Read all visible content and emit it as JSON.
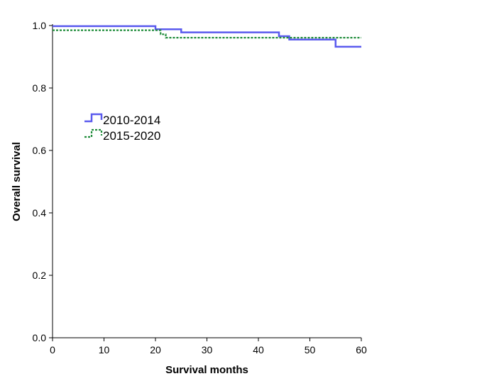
{
  "chart_data": {
    "type": "line",
    "style": "step",
    "xlabel": "Survival months",
    "ylabel": "Overall survival",
    "xlim": [
      0,
      60
    ],
    "ylim": [
      0.0,
      1.0
    ],
    "x_ticks": [
      0,
      10,
      20,
      30,
      40,
      50,
      60
    ],
    "x_tick_labels": [
      "0",
      "10",
      "20",
      "30",
      "40",
      "50",
      "60"
    ],
    "y_ticks": [
      0.0,
      0.2,
      0.4,
      0.6,
      0.8,
      1.0
    ],
    "y_tick_labels": [
      "0.0",
      "0.2",
      "0.4",
      "0.6",
      "0.8",
      "1.0"
    ],
    "grid": false,
    "legend_position": "upper-left inside plot",
    "series": [
      {
        "name": "2010-2014",
        "color": "#5a5aee",
        "line_style": "solid",
        "x": [
          0,
          20,
          25,
          44,
          46,
          55,
          60
        ],
        "y": [
          0.998,
          0.988,
          0.978,
          0.966,
          0.955,
          0.932,
          0.932
        ]
      },
      {
        "name": "2015-2020",
        "color": "#1f8c3a",
        "line_style": "dotted",
        "x": [
          0,
          21,
          22,
          60
        ],
        "y": [
          0.985,
          0.972,
          0.961,
          0.961
        ]
      }
    ]
  }
}
